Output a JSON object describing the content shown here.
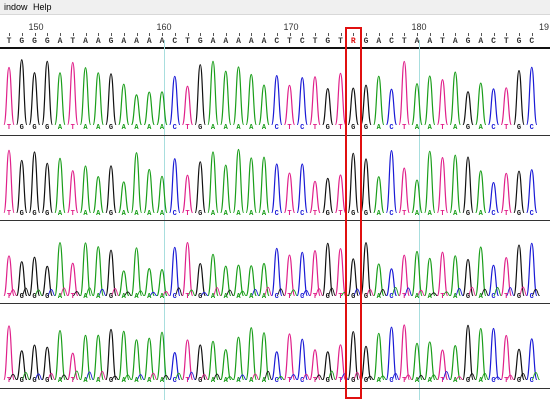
{
  "menu": {
    "items": [
      "indow",
      "Help"
    ]
  },
  "ruler": {
    "ticks": [
      "150",
      "160",
      "170",
      "180",
      "19"
    ]
  },
  "reference": {
    "sequence": "TGGGATAAGAAAACTGAAAAACTCTGTRGACTAATAGACTGC"
  },
  "traces": [
    {
      "label_sequence": "TGGGATAAGAAAACTGAAAAACTCTGTGGACTAATAGACTGC"
    },
    {
      "label_sequence": "TGGGATAAGAAAACTGAAAAACTCTGTGGACTAATAGACTGC"
    },
    {
      "label_sequence": "TGGGATAAGAAAACTGAAAAACTCTGTGGACTAATAGACTGC"
    },
    {
      "label_sequence": "TGGGATAAGAAAACTGAAAAACTCTGTGGACTAATAGACTGC"
    }
  ],
  "base_colors": {
    "A": "#1a9e1a",
    "C": "#1a1ad6",
    "G": "#111111",
    "T": "#e0208a",
    "R": "#e01010"
  },
  "highlight_position": 27
}
